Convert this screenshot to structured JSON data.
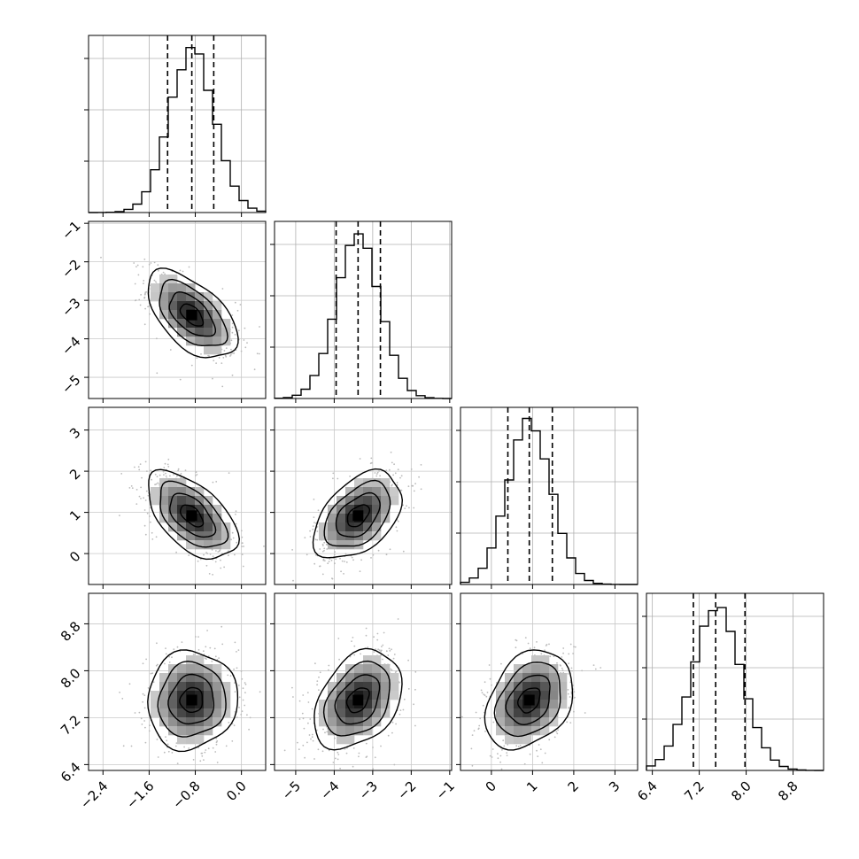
{
  "chart_data": {
    "type": "corner",
    "description": "Corner plot of posterior samples for four parameters: 1-D histograms on the diagonal with dashed 16/50/84 percentile lines, 2-D density (grey blocks, scattered samples and contour lines) below the diagonal.",
    "grid": true,
    "parameters": [
      {
        "index": 0,
        "range": [
          -2.65,
          0.42
        ],
        "ticks": [
          -2.4,
          -1.6,
          -0.8,
          0.0
        ],
        "tick_labels": [
          "−2.4",
          "−1.6",
          "−0.8",
          "0.0"
        ],
        "quantiles": [
          -1.28,
          -0.86,
          -0.48
        ],
        "mean": -0.86,
        "sd": 0.39
      },
      {
        "index": 1,
        "range": [
          -5.55,
          -0.95
        ],
        "ticks": [
          -5,
          -4,
          -3,
          -2,
          -1
        ],
        "tick_labels": [
          "−5",
          "−4",
          "−3",
          "−2",
          "−1"
        ],
        "quantiles": [
          -3.95,
          -3.38,
          -2.8
        ],
        "mean": -3.38,
        "sd": 0.57
      },
      {
        "index": 2,
        "range": [
          -0.75,
          3.55
        ],
        "ticks": [
          0,
          1,
          2,
          3
        ],
        "tick_labels": [
          "0",
          "1",
          "2",
          "3"
        ],
        "quantiles": [
          0.4,
          0.92,
          1.48
        ],
        "mean": 0.92,
        "sd": 0.53
      },
      {
        "index": 3,
        "range": [
          6.3,
          9.32
        ],
        "ticks": [
          6.4,
          7.2,
          8.0,
          8.8
        ],
        "tick_labels": [
          "6.4",
          "7.2",
          "8.0",
          "8.8"
        ],
        "quantiles": [
          7.1,
          7.48,
          7.98
        ],
        "mean": 7.5,
        "sd": 0.42
      }
    ],
    "correlations": [
      {
        "pair": [
          0,
          1
        ],
        "rho": -0.55
      },
      {
        "pair": [
          0,
          2
        ],
        "rho": -0.55
      },
      {
        "pair": [
          1,
          2
        ],
        "rho": 0.45
      },
      {
        "pair": [
          0,
          3
        ],
        "rho": 0.05
      },
      {
        "pair": [
          1,
          3
        ],
        "rho": 0.35
      },
      {
        "pair": [
          2,
          3
        ],
        "rho": 0.3
      }
    ],
    "contour_levels_sigma": [
      0.5,
      1.0,
      1.5,
      2.0
    ],
    "histogram_bins": 20
  }
}
